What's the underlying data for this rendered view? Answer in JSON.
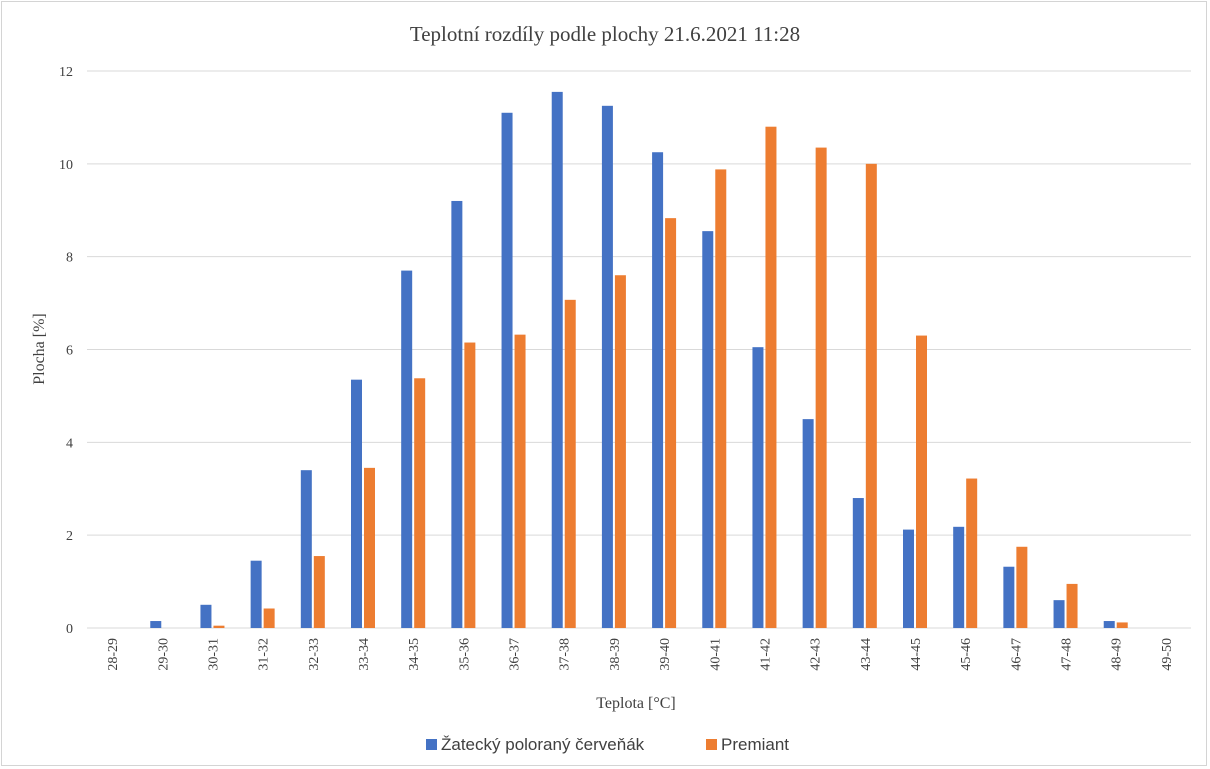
{
  "chart_data": {
    "type": "bar",
    "title": "Teplotní rozdíly podle plochy 21.6.2021 11:28",
    "xlabel": "Teplota [°C]",
    "ylabel": "Plocha [%]",
    "ylim": [
      0,
      12
    ],
    "yticks": [
      0,
      2,
      4,
      6,
      8,
      10,
      12
    ],
    "grid": true,
    "legend_position": "bottom",
    "categories": [
      "28-29",
      "29-30",
      "30-31",
      "31-32",
      "32-33",
      "33-34",
      "34-35",
      "35-36",
      "36-37",
      "37-38",
      "38-39",
      "39-40",
      "40-41",
      "41-42",
      "42-43",
      "43-44",
      "44-45",
      "45-46",
      "46-47",
      "47-48",
      "48-49",
      "49-50"
    ],
    "series": [
      {
        "name": "Žatecký poloraný červeňák",
        "color": "#4472c4",
        "values": [
          0,
          0.15,
          0.5,
          1.45,
          3.4,
          5.35,
          7.7,
          9.2,
          11.1,
          11.55,
          11.25,
          10.25,
          8.55,
          6.05,
          4.5,
          2.8,
          2.12,
          2.18,
          1.32,
          0.6,
          0.15,
          0
        ]
      },
      {
        "name": "Premiant",
        "color": "#ed7d31",
        "values": [
          0,
          0,
          0.05,
          0.42,
          1.55,
          3.45,
          5.38,
          6.15,
          6.32,
          7.07,
          7.6,
          8.83,
          9.88,
          10.8,
          10.35,
          10.0,
          6.3,
          3.22,
          1.75,
          0.95,
          0.12,
          0
        ]
      }
    ]
  }
}
